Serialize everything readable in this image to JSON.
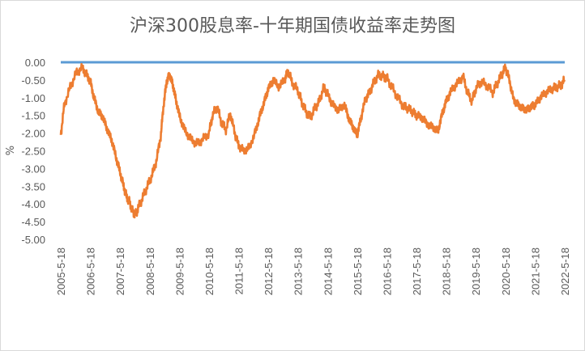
{
  "chart_data": {
    "type": "line",
    "title": "沪深300股息率-十年期国债收益率走势图",
    "xlabel": "",
    "ylabel": "%",
    "ylim": [
      -5.0,
      0.0
    ],
    "yticks": [
      "0.00",
      "-0.50",
      "-1.00",
      "-1.50",
      "-2.00",
      "-2.50",
      "-3.00",
      "-3.50",
      "-4.00",
      "-4.50",
      "-5.00"
    ],
    "xticks": [
      "2005-5-18",
      "2006-5-18",
      "2007-5-18",
      "2008-5-18",
      "2009-5-18",
      "2010-5-18",
      "2011-5-18",
      "2012-5-18",
      "2013-5-18",
      "2014-5-18",
      "2015-5-18",
      "2016-5-18",
      "2017-5-18",
      "2018-5-18",
      "2019-5-18",
      "2020-5-18",
      "2021-5-18",
      "2022-5-18"
    ],
    "series": [
      {
        "name": "zero-line",
        "color": "#5b9bd5",
        "x": [
          2005.38,
          2022.38
        ],
        "values": [
          0.0,
          0.0
        ]
      },
      {
        "name": "沪深300股息率-十年期国债收益率",
        "color": "#ed7d31",
        "x": [
          2005.38,
          2005.5,
          2005.7,
          2005.9,
          2006.1,
          2006.25,
          2006.38,
          2006.5,
          2006.65,
          2006.8,
          2006.95,
          2007.1,
          2007.25,
          2007.38,
          2007.5,
          2007.6,
          2007.7,
          2007.8,
          2007.9,
          2008.0,
          2008.15,
          2008.3,
          2008.45,
          2008.6,
          2008.75,
          2008.85,
          2008.95,
          2009.05,
          2009.15,
          2009.25,
          2009.38,
          2009.55,
          2009.75,
          2009.95,
          2010.15,
          2010.38,
          2010.5,
          2010.65,
          2010.8,
          2010.95,
          2011.1,
          2011.25,
          2011.38,
          2011.55,
          2011.75,
          2011.95,
          2012.1,
          2012.25,
          2012.38,
          2012.55,
          2012.75,
          2012.95,
          2013.05,
          2013.2,
          2013.38,
          2013.5,
          2013.65,
          2013.8,
          2013.95,
          2014.1,
          2014.25,
          2014.38,
          2014.55,
          2014.75,
          2014.95,
          2015.1,
          2015.25,
          2015.38,
          2015.5,
          2015.65,
          2015.8,
          2015.95,
          2016.1,
          2016.25,
          2016.38,
          2016.55,
          2016.75,
          2016.95,
          2017.1,
          2017.25,
          2017.38,
          2017.55,
          2017.75,
          2017.95,
          2018.1,
          2018.25,
          2018.38,
          2018.55,
          2018.75,
          2018.95,
          2019.1,
          2019.25,
          2019.38,
          2019.55,
          2019.75,
          2019.95,
          2020.1,
          2020.25,
          2020.38,
          2020.5,
          2020.65,
          2020.8,
          2020.95,
          2021.1,
          2021.25,
          2021.38,
          2021.55,
          2021.75,
          2021.95,
          2022.1,
          2022.25,
          2022.38
        ],
        "values": [
          -2.05,
          -1.2,
          -0.7,
          -0.3,
          -0.15,
          -0.35,
          -0.55,
          -1.0,
          -1.4,
          -1.55,
          -1.9,
          -2.2,
          -2.7,
          -3.1,
          -3.5,
          -3.8,
          -3.95,
          -4.2,
          -4.3,
          -4.1,
          -3.8,
          -3.5,
          -3.2,
          -2.8,
          -2.1,
          -1.2,
          -0.55,
          -0.35,
          -0.6,
          -1.0,
          -1.5,
          -1.9,
          -2.15,
          -2.3,
          -2.2,
          -2.0,
          -1.5,
          -1.25,
          -1.7,
          -1.9,
          -1.45,
          -2.0,
          -2.35,
          -2.5,
          -2.4,
          -1.95,
          -1.5,
          -1.1,
          -0.75,
          -0.5,
          -0.7,
          -0.45,
          -0.25,
          -0.6,
          -0.8,
          -1.1,
          -1.4,
          -1.55,
          -1.3,
          -1.1,
          -0.7,
          -0.9,
          -1.2,
          -1.35,
          -1.2,
          -1.6,
          -1.85,
          -2.05,
          -1.6,
          -1.05,
          -0.85,
          -0.55,
          -0.35,
          -0.4,
          -0.45,
          -0.7,
          -1.0,
          -1.25,
          -1.3,
          -1.4,
          -1.5,
          -1.55,
          -1.75,
          -1.85,
          -1.95,
          -1.45,
          -1.1,
          -0.8,
          -0.6,
          -0.4,
          -0.85,
          -1.1,
          -0.75,
          -0.55,
          -0.65,
          -0.85,
          -0.6,
          -0.35,
          -0.15,
          -0.45,
          -1.05,
          -1.2,
          -1.3,
          -1.35,
          -1.25,
          -1.2,
          -1.0,
          -0.85,
          -0.75,
          -0.7,
          -0.65,
          -0.5
        ]
      }
    ]
  }
}
